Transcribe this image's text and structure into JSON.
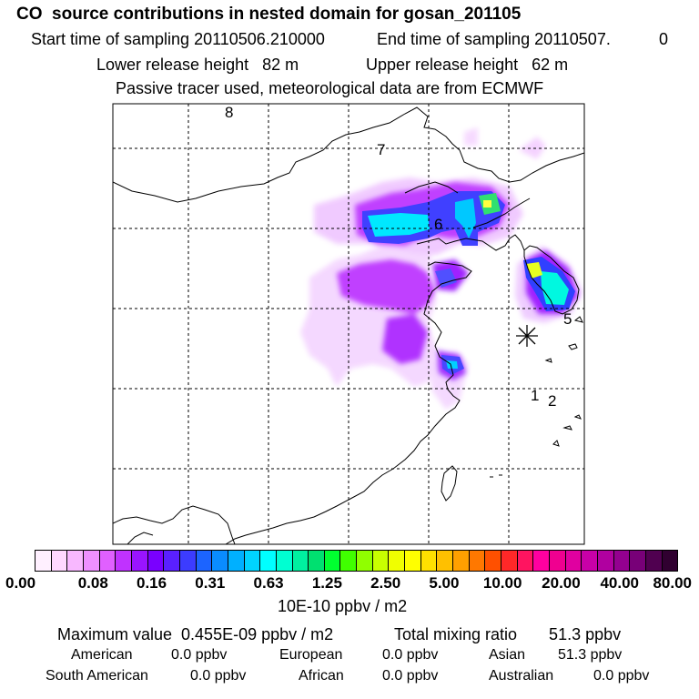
{
  "header": {
    "title": "CO  source contributions in nested domain for gosan_201105",
    "start_sampling": "Start time of sampling 20110506.210000",
    "end_sampling": "End time of sampling 20110507.",
    "end_sampling_suffix": "0",
    "lower_release": "Lower release height   82 m",
    "upper_release": "Upper release height   62 m",
    "tracer_note": "Passive tracer used, meteorological data are from ECMWF"
  },
  "map": {
    "grid_lines": "dashed",
    "track_labels": [
      "8",
      "7",
      "6",
      "5",
      "1",
      "2"
    ],
    "receptor_marker": "asterisk"
  },
  "colorbar": {
    "colors": [
      "#fff0ff",
      "#ffd8ff",
      "#f8b8ff",
      "#ee90ff",
      "#e060ff",
      "#c032ff",
      "#9a14ff",
      "#7a00ff",
      "#5a20ff",
      "#3c3cff",
      "#1c64ff",
      "#0a8cff",
      "#00b0ff",
      "#00d4ff",
      "#00ffff",
      "#00ffd2",
      "#00f0a0",
      "#00e070",
      "#00ff30",
      "#40ff00",
      "#90ff00",
      "#c8ff00",
      "#f0ff00",
      "#ffff00",
      "#ffe000",
      "#ffc000",
      "#ffa000",
      "#ff7800",
      "#ff5000",
      "#ff2828",
      "#ff1460",
      "#ff00a0",
      "#f00090",
      "#e000a0",
      "#c800a8",
      "#b000a0",
      "#940090",
      "#780078",
      "#500050",
      "#300030"
    ],
    "tick_labels": [
      "0.00",
      "0.08",
      "0.16",
      "0.31",
      "0.63",
      "1.25",
      "2.50",
      "5.00",
      "10.00",
      "20.00",
      "40.00",
      "80.00"
    ],
    "unit": "10E-10 ppbv / m2"
  },
  "footer": {
    "max_value": "Maximum value  0.455E-09 ppbv / m2",
    "total_mixing": "Total mixing ratio       51.3 ppbv",
    "sources": [
      {
        "label": "American",
        "value": "0.0 ppbv"
      },
      {
        "label": "European",
        "value": "0.0 ppbv"
      },
      {
        "label": "Asian",
        "value": "51.3 ppbv"
      },
      {
        "label": "South American",
        "value": "0.0 ppbv"
      },
      {
        "label": "African",
        "value": "0.0 ppbv"
      },
      {
        "label": "Australian",
        "value": "0.0 ppbv"
      }
    ]
  }
}
